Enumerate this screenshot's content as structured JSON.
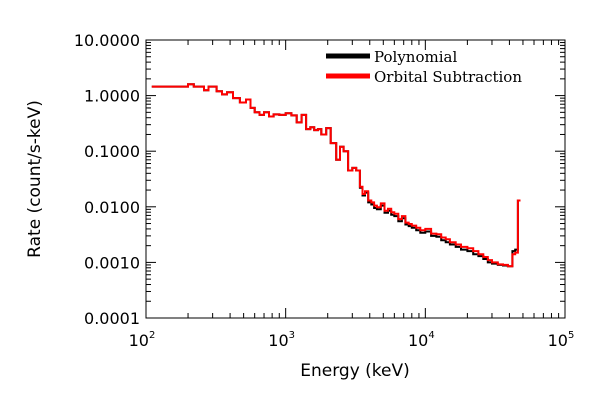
{
  "chart_data": {
    "type": "line",
    "title": "",
    "xlabel": "Energy (keV)",
    "ylabel": "Rate (count/s-keV)",
    "xscale": "log",
    "yscale": "log",
    "xlim": [
      100,
      100000
    ],
    "ylim": [
      0.0001,
      10
    ],
    "grid": false,
    "legend_position": "top-right",
    "x_ticks": [
      {
        "value": 100,
        "base": "10",
        "exp": "2"
      },
      {
        "value": 1000,
        "base": "10",
        "exp": "3"
      },
      {
        "value": 10000,
        "base": "10",
        "exp": "4"
      },
      {
        "value": 100000,
        "base": "10",
        "exp": "5"
      }
    ],
    "y_ticks": [
      {
        "value": 10,
        "label": "10.0000"
      },
      {
        "value": 1,
        "label": "1.0000"
      },
      {
        "value": 0.1,
        "label": "0.1000"
      },
      {
        "value": 0.01,
        "label": "0.0100"
      },
      {
        "value": 0.001,
        "label": "0.0010"
      },
      {
        "value": 0.0001,
        "label": "0.0001"
      }
    ],
    "series": [
      {
        "name": "Polynomial",
        "color": "#000000",
        "style": "step",
        "x": [
          110,
          200,
          220,
          260,
          280,
          320,
          350,
          380,
          420,
          470,
          520,
          560,
          600,
          650,
          700,
          760,
          820,
          900,
          1000,
          1100,
          1200,
          1300,
          1400,
          1500,
          1600,
          1700,
          1800,
          1950,
          2100,
          2300,
          2450,
          2600,
          2800,
          3000,
          3200,
          3400,
          3550,
          3700,
          3900,
          4100,
          4300,
          4500,
          4800,
          5100,
          5400,
          5700,
          6000,
          6400,
          6800,
          7200,
          7600,
          8000,
          8600,
          9200,
          10000,
          11000,
          12000,
          13000,
          14000,
          15000,
          16500,
          18000,
          20000,
          22000,
          24000,
          26000,
          28000,
          30000,
          33000,
          36000,
          39000,
          42000,
          44000,
          46000,
          48000
        ],
        "y": [
          1.45,
          1.6,
          1.45,
          1.25,
          1.45,
          1.2,
          1.05,
          1.15,
          0.9,
          0.75,
          0.85,
          0.6,
          0.5,
          0.45,
          0.5,
          0.42,
          0.46,
          0.45,
          0.48,
          0.44,
          0.33,
          0.45,
          0.25,
          0.27,
          0.24,
          0.25,
          0.2,
          0.26,
          0.14,
          0.07,
          0.12,
          0.1,
          0.045,
          0.05,
          0.045,
          0.022,
          0.016,
          0.018,
          0.012,
          0.011,
          0.0095,
          0.009,
          0.0105,
          0.0078,
          0.0085,
          0.0072,
          0.0068,
          0.0055,
          0.0062,
          0.0048,
          0.0045,
          0.0042,
          0.0038,
          0.0034,
          0.0036,
          0.003,
          0.0029,
          0.0025,
          0.0023,
          0.0021,
          0.0019,
          0.0017,
          0.0016,
          0.0014,
          0.0013,
          0.00115,
          0.001,
          0.00095,
          0.0009,
          0.00088,
          0.00085,
          0.0016,
          0.0017,
          0.013,
          0.013
        ]
      },
      {
        "name": "Orbital Subtraction",
        "color": "#ff0000",
        "style": "step",
        "x": [
          110,
          200,
          220,
          260,
          280,
          320,
          350,
          380,
          420,
          470,
          520,
          560,
          600,
          650,
          700,
          760,
          820,
          900,
          1000,
          1100,
          1200,
          1300,
          1400,
          1500,
          1600,
          1700,
          1800,
          1950,
          2100,
          2300,
          2450,
          2600,
          2800,
          3000,
          3200,
          3400,
          3550,
          3700,
          3900,
          4100,
          4300,
          4500,
          4800,
          5100,
          5400,
          5700,
          6000,
          6400,
          6800,
          7200,
          7600,
          8000,
          8600,
          9200,
          10000,
          11000,
          12000,
          13000,
          14000,
          15000,
          16500,
          18000,
          20000,
          22000,
          24000,
          26000,
          28000,
          30000,
          33000,
          36000,
          39000,
          42000,
          44000,
          46000,
          48000
        ],
        "y": [
          1.45,
          1.6,
          1.45,
          1.25,
          1.45,
          1.2,
          1.05,
          1.15,
          0.9,
          0.75,
          0.85,
          0.6,
          0.5,
          0.45,
          0.5,
          0.42,
          0.46,
          0.45,
          0.48,
          0.44,
          0.33,
          0.45,
          0.25,
          0.27,
          0.24,
          0.25,
          0.2,
          0.26,
          0.14,
          0.07,
          0.12,
          0.1,
          0.045,
          0.05,
          0.045,
          0.023,
          0.017,
          0.019,
          0.013,
          0.012,
          0.0105,
          0.0098,
          0.0115,
          0.0085,
          0.0092,
          0.008,
          0.0075,
          0.006,
          0.0068,
          0.0052,
          0.0049,
          0.0046,
          0.0042,
          0.0038,
          0.004,
          0.0033,
          0.0032,
          0.0028,
          0.0026,
          0.0023,
          0.0021,
          0.0019,
          0.0018,
          0.0016,
          0.0014,
          0.00125,
          0.0011,
          0.001,
          0.00092,
          0.0009,
          0.00085,
          0.0014,
          0.0015,
          0.013,
          0.013
        ]
      }
    ]
  }
}
